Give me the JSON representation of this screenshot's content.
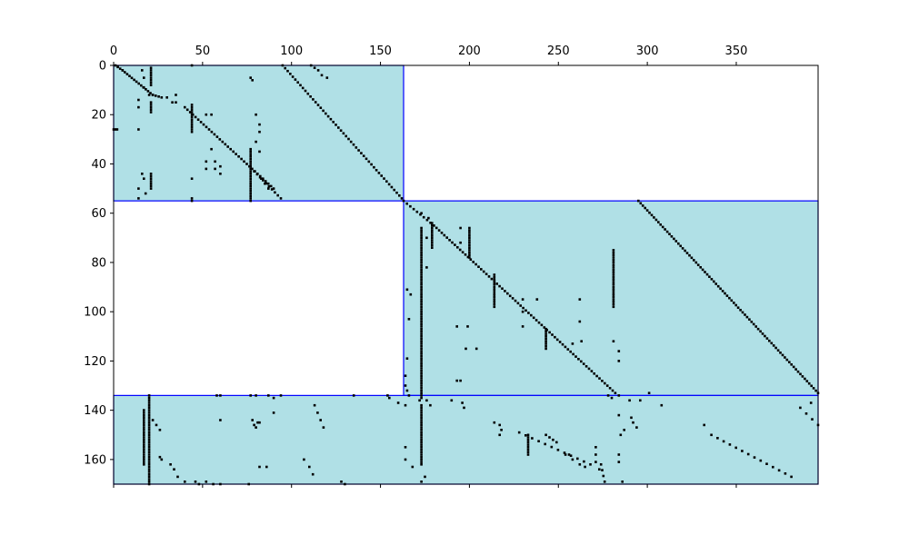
{
  "chart_data": {
    "type": "scatter",
    "title": "",
    "xlabel": "",
    "ylabel": "",
    "xlim": [
      0,
      396
    ],
    "ylim": [
      170,
      0
    ],
    "x_ticks": [
      0,
      50,
      100,
      150,
      200,
      250,
      300,
      350
    ],
    "y_ticks": [
      0,
      20,
      40,
      60,
      80,
      100,
      120,
      140,
      160
    ],
    "x_tick_labels": [
      "0",
      "50",
      "100",
      "150",
      "200",
      "250",
      "300",
      "350"
    ],
    "y_tick_labels": [
      "0",
      "20",
      "40",
      "60",
      "80",
      "100",
      "120",
      "140",
      "160"
    ],
    "x_axis_position": "top",
    "grid": false,
    "colors": {
      "block_fill": "#b0e0e6",
      "block_edge": "#0000ff",
      "marker": "#000000"
    },
    "blocks": [
      {
        "x0": 0,
        "x1": 163,
        "y0": 0,
        "y1": 55
      },
      {
        "x0": 163,
        "x1": 396,
        "y0": 55,
        "y1": 134
      },
      {
        "x0": 0,
        "x1": 396,
        "y0": 134,
        "y1": 170
      }
    ],
    "diagonal_runs": [
      {
        "x0": 1,
        "y0": 0,
        "x1": 5,
        "y1": 2,
        "n": 4
      },
      {
        "x0": 5,
        "y0": 2,
        "x1": 22,
        "y1": 12,
        "n": 14
      },
      {
        "x0": 22,
        "y0": 12,
        "x1": 27,
        "y1": 13,
        "n": 4
      },
      {
        "x0": 40,
        "y0": 17,
        "x1": 90,
        "y1": 50,
        "n": 34
      },
      {
        "x0": 79,
        "y0": 43,
        "x1": 94,
        "y1": 54,
        "n": 10
      },
      {
        "x0": 95,
        "y0": 0,
        "x1": 162,
        "y1": 54,
        "n": 48
      },
      {
        "x0": 163,
        "y0": 55,
        "x1": 180,
        "y1": 65,
        "n": 10
      },
      {
        "x0": 180,
        "y0": 65,
        "x1": 282,
        "y1": 133,
        "n": 70
      },
      {
        "x0": 295,
        "y0": 55,
        "x1": 396,
        "y1": 133,
        "n": 82
      },
      {
        "x0": 336,
        "y0": 150,
        "x1": 381,
        "y1": 167,
        "n": 14
      },
      {
        "x0": 228,
        "y0": 149,
        "x1": 268,
        "y1": 162,
        "n": 12
      },
      {
        "x0": 113,
        "y0": 138,
        "x1": 118,
        "y1": 147,
        "n": 4
      },
      {
        "x0": 274,
        "y0": 162,
        "x1": 276,
        "y1": 169,
        "n": 4
      },
      {
        "x0": 386,
        "y0": 139,
        "x1": 396,
        "y1": 146,
        "n": 4
      }
    ],
    "vertical_runs": [
      {
        "x": 21,
        "y0": 1,
        "y1": 8
      },
      {
        "x": 21,
        "y0": 15,
        "y1": 19
      },
      {
        "x": 21,
        "y0": 44,
        "y1": 50
      },
      {
        "x": 44,
        "y0": 16,
        "y1": 27
      },
      {
        "x": 77,
        "y0": 34,
        "y1": 55
      },
      {
        "x": 173,
        "y0": 66,
        "y1": 135
      },
      {
        "x": 173,
        "y0": 138,
        "y1": 162
      },
      {
        "x": 179,
        "y0": 64,
        "y1": 74
      },
      {
        "x": 200,
        "y0": 66,
        "y1": 78
      },
      {
        "x": 214,
        "y0": 85,
        "y1": 98
      },
      {
        "x": 281,
        "y0": 75,
        "y1": 98
      },
      {
        "x": 20,
        "y0": 134,
        "y1": 170
      },
      {
        "x": 233,
        "y0": 150,
        "y1": 158
      },
      {
        "x": 243,
        "y0": 107,
        "y1": 115
      },
      {
        "x": 17,
        "y0": 140,
        "y1": 162
      }
    ],
    "points": [
      [
        0,
        26
      ],
      [
        1,
        26
      ],
      [
        2,
        26
      ],
      [
        14,
        14
      ],
      [
        14,
        17
      ],
      [
        14,
        26
      ],
      [
        16,
        2
      ],
      [
        17,
        5
      ],
      [
        17,
        9
      ],
      [
        20,
        12
      ],
      [
        18,
        52
      ],
      [
        14,
        50
      ],
      [
        14,
        54
      ],
      [
        16,
        44
      ],
      [
        17,
        46
      ],
      [
        44,
        0
      ],
      [
        44,
        46
      ],
      [
        44,
        54
      ],
      [
        44,
        55
      ],
      [
        30,
        13
      ],
      [
        33,
        15
      ],
      [
        35,
        12
      ],
      [
        35,
        15
      ],
      [
        52,
        20
      ],
      [
        55,
        20
      ],
      [
        55,
        34
      ],
      [
        52,
        39
      ],
      [
        52,
        42
      ],
      [
        57,
        39
      ],
      [
        57,
        42
      ],
      [
        60,
        41
      ],
      [
        60,
        44
      ],
      [
        77,
        5
      ],
      [
        78,
        6
      ],
      [
        80,
        20
      ],
      [
        82,
        24
      ],
      [
        82,
        27
      ],
      [
        80,
        31
      ],
      [
        82,
        35
      ],
      [
        83,
        46
      ],
      [
        85,
        48
      ],
      [
        87,
        50
      ],
      [
        111,
        0
      ],
      [
        113,
        1
      ],
      [
        115,
        2
      ],
      [
        117,
        4
      ],
      [
        120,
        5
      ],
      [
        164,
        126
      ],
      [
        164,
        130
      ],
      [
        165,
        119
      ],
      [
        165,
        132
      ],
      [
        165,
        91
      ],
      [
        166,
        103
      ],
      [
        167,
        93
      ],
      [
        173,
        60
      ],
      [
        176,
        70
      ],
      [
        176,
        82
      ],
      [
        177,
        62
      ],
      [
        195,
        66
      ],
      [
        195,
        72
      ],
      [
        193,
        106
      ],
      [
        199,
        106
      ],
      [
        193,
        128
      ],
      [
        195,
        128
      ],
      [
        198,
        115
      ],
      [
        204,
        115
      ],
      [
        230,
        95
      ],
      [
        230,
        100
      ],
      [
        230,
        106
      ],
      [
        238,
        95
      ],
      [
        262,
        95
      ],
      [
        262,
        104
      ],
      [
        263,
        112
      ],
      [
        258,
        113
      ],
      [
        281,
        112
      ],
      [
        284,
        120
      ],
      [
        284,
        116
      ],
      [
        301,
        133
      ],
      [
        58,
        134
      ],
      [
        60,
        134
      ],
      [
        77,
        134
      ],
      [
        80,
        134
      ],
      [
        87,
        134
      ],
      [
        90,
        135
      ],
      [
        94,
        134
      ],
      [
        135,
        134
      ],
      [
        154,
        134
      ],
      [
        155,
        135
      ],
      [
        160,
        137
      ],
      [
        166,
        134
      ],
      [
        164,
        138
      ],
      [
        172,
        136
      ],
      [
        176,
        136
      ],
      [
        178,
        138
      ],
      [
        190,
        136
      ],
      [
        196,
        137
      ],
      [
        197,
        139
      ],
      [
        278,
        134
      ],
      [
        280,
        135
      ],
      [
        284,
        134
      ],
      [
        290,
        136
      ],
      [
        296,
        136
      ],
      [
        308,
        138
      ],
      [
        392,
        137
      ],
      [
        332,
        146
      ],
      [
        90,
        141
      ],
      [
        60,
        144
      ],
      [
        78,
        144
      ],
      [
        82,
        145
      ],
      [
        79,
        146
      ],
      [
        80,
        147
      ],
      [
        81,
        145
      ],
      [
        22,
        144
      ],
      [
        24,
        146
      ],
      [
        26,
        148
      ],
      [
        82,
        163
      ],
      [
        86,
        163
      ],
      [
        107,
        160
      ],
      [
        110,
        163
      ],
      [
        112,
        166
      ],
      [
        26,
        159
      ],
      [
        27,
        160
      ],
      [
        32,
        162
      ],
      [
        34,
        164
      ],
      [
        36,
        167
      ],
      [
        40,
        169
      ],
      [
        46,
        169
      ],
      [
        48,
        170
      ],
      [
        52,
        169
      ],
      [
        56,
        170
      ],
      [
        60,
        170
      ],
      [
        76,
        170
      ],
      [
        128,
        169
      ],
      [
        130,
        170
      ],
      [
        164,
        155
      ],
      [
        164,
        160
      ],
      [
        168,
        163
      ],
      [
        175,
        167
      ],
      [
        173,
        169
      ],
      [
        271,
        155
      ],
      [
        271,
        158
      ],
      [
        271,
        161
      ],
      [
        273,
        164
      ],
      [
        284,
        158
      ],
      [
        284,
        161
      ],
      [
        286,
        169
      ],
      [
        291,
        143
      ],
      [
        292,
        145
      ],
      [
        294,
        147
      ],
      [
        284,
        142
      ],
      [
        287,
        148
      ],
      [
        285,
        150
      ],
      [
        254,
        158
      ],
      [
        256,
        158
      ],
      [
        258,
        160
      ],
      [
        265,
        163
      ],
      [
        262,
        162
      ],
      [
        243,
        150
      ],
      [
        245,
        151
      ],
      [
        247,
        152
      ],
      [
        249,
        153
      ],
      [
        214,
        145
      ],
      [
        217,
        146
      ],
      [
        218,
        148
      ],
      [
        217,
        150
      ]
    ]
  }
}
